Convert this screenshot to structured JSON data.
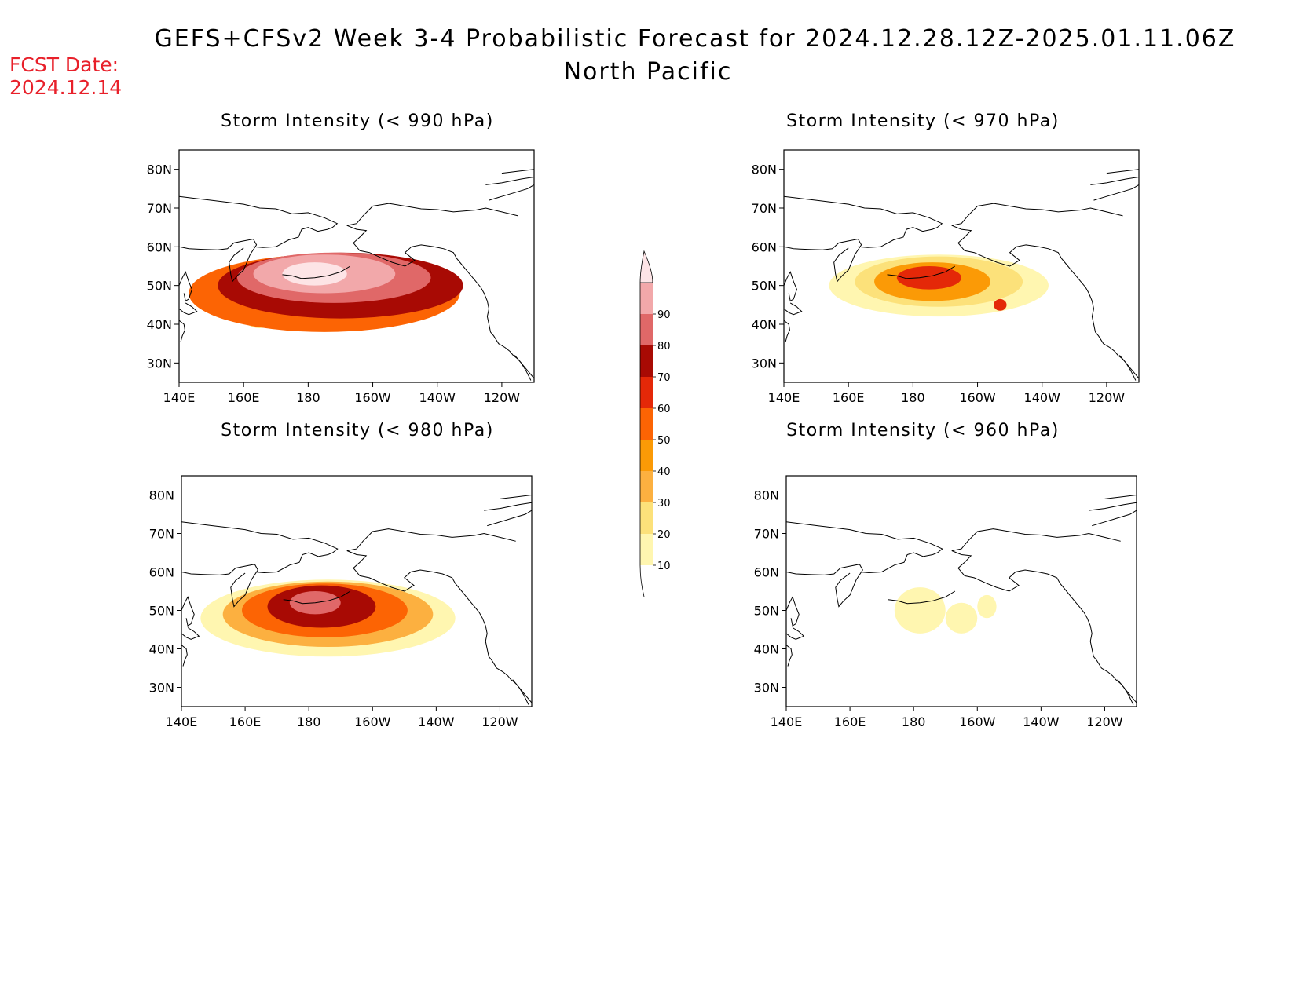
{
  "header": {
    "title": "GEFS+CFSv2 Week 3-4 Probabilistic Forecast for 2024.12.28.12Z-2025.01.11.06Z",
    "subtitle": "North Pacific",
    "fcst_label": "FCST Date:",
    "fcst_date": "2024.12.14"
  },
  "colorbar": {
    "levels": [
      10,
      20,
      30,
      40,
      50,
      60,
      70,
      80,
      90
    ],
    "colors": [
      "#fff6b0",
      "#fce17a",
      "#fcb040",
      "#fb9a06",
      "#fc6404",
      "#e42808",
      "#a80a04",
      "#e06868",
      "#f2a8aa",
      "#fde4e6"
    ]
  },
  "panels": [
    {
      "title": "Storm Intensity (< 990 hPa)",
      "lat_labels": [
        "80N",
        "70N",
        "60N",
        "50N",
        "40N",
        "30N"
      ],
      "lon_labels": [
        "140E",
        "160E",
        "180",
        "160W",
        "140W",
        "120W"
      ],
      "fields": [
        {
          "lon": 165,
          "lat": 43,
          "rx": 6,
          "ry": 4,
          "level": 1
        },
        {
          "lon": 185,
          "lat": 48,
          "rx": 42,
          "ry": 10,
          "level": 4
        },
        {
          "lon": 190,
          "lat": 50,
          "rx": 38,
          "ry": 8.5,
          "level": 6
        },
        {
          "lon": 188,
          "lat": 52,
          "rx": 30,
          "ry": 6.5,
          "level": 7
        },
        {
          "lon": 185,
          "lat": 53,
          "rx": 22,
          "ry": 5,
          "level": 8
        },
        {
          "lon": 182,
          "lat": 53,
          "rx": 10,
          "ry": 3,
          "level": 9
        }
      ]
    },
    {
      "title": "Storm Intensity (< 970 hPa)",
      "lat_labels": [
        "80N",
        "70N",
        "60N",
        "50N",
        "40N",
        "30N"
      ],
      "lon_labels": [
        "140E",
        "160E",
        "180",
        "160W",
        "140W",
        "120W"
      ],
      "fields": [
        {
          "lon": 188,
          "lat": 50,
          "rx": 34,
          "ry": 8,
          "level": 0
        },
        {
          "lon": 188,
          "lat": 51,
          "rx": 26,
          "ry": 6.5,
          "level": 1
        },
        {
          "lon": 186,
          "lat": 51,
          "rx": 18,
          "ry": 5,
          "level": 3
        },
        {
          "lon": 185,
          "lat": 52,
          "rx": 10,
          "ry": 3,
          "level": 5
        },
        {
          "lon": 207,
          "lat": 45,
          "rx": 2,
          "ry": 1.5,
          "level": 5
        }
      ]
    },
    {
      "title": "Storm Intensity (< 980 hPa)",
      "lat_labels": [
        "80N",
        "70N",
        "60N",
        "50N",
        "40N",
        "30N"
      ],
      "lon_labels": [
        "140E",
        "160E",
        "180",
        "160W",
        "140W",
        "120W"
      ],
      "fields": [
        {
          "lon": 186,
          "lat": 48,
          "rx": 40,
          "ry": 10,
          "level": 0
        },
        {
          "lon": 186,
          "lat": 49,
          "rx": 33,
          "ry": 8.5,
          "level": 2
        },
        {
          "lon": 185,
          "lat": 50,
          "rx": 26,
          "ry": 7,
          "level": 4
        },
        {
          "lon": 184,
          "lat": 51,
          "rx": 17,
          "ry": 5.5,
          "level": 6
        },
        {
          "lon": 182,
          "lat": 52,
          "rx": 8,
          "ry": 3,
          "level": 7
        }
      ]
    },
    {
      "title": "Storm Intensity (< 960 hPa)",
      "lat_labels": [
        "80N",
        "70N",
        "60N",
        "50N",
        "40N",
        "30N"
      ],
      "lon_labels": [
        "140E",
        "160E",
        "180",
        "160W",
        "140W",
        "120W"
      ],
      "fields": [
        {
          "lon": 182,
          "lat": 50,
          "rx": 8,
          "ry": 6,
          "level": 0
        },
        {
          "lon": 195,
          "lat": 48,
          "rx": 5,
          "ry": 4,
          "level": 0
        },
        {
          "lon": 203,
          "lat": 51,
          "rx": 3,
          "ry": 3,
          "level": 0
        }
      ]
    }
  ]
}
